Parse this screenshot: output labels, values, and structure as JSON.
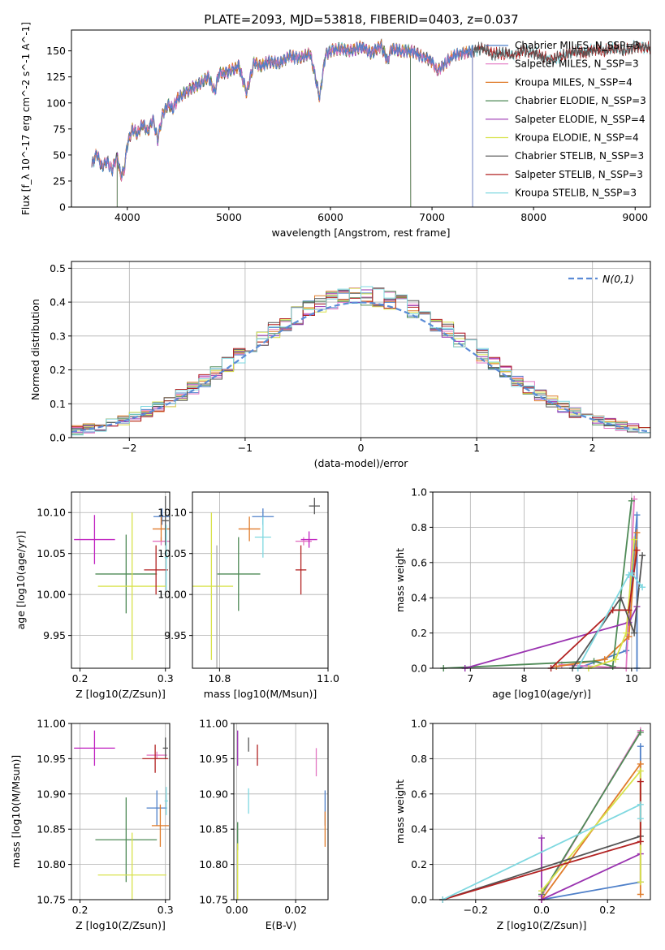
{
  "figure_title": "PLATE=2093, MJD=53818, FIBERID=0403, z=0.037",
  "chart_data": [
    {
      "id": "spectrum",
      "type": "line",
      "title": "PLATE=2093, MJD=53818, FIBERID=0403, z=0.037",
      "xlabel": "wavelength [Angstrom, rest frame]",
      "ylabel": "Flux [f_λ 10^-17 erg cm^-2 s^-1 A^-1]",
      "xlim": [
        3450,
        9150
      ],
      "ylim": [
        0,
        170
      ],
      "xticks": [
        4000,
        5000,
        6000,
        7000,
        8000,
        9000
      ],
      "yticks": [
        0,
        25,
        50,
        75,
        100,
        125,
        150
      ],
      "grid": false,
      "legend_position": "right",
      "spectrum_x": [
        3650,
        3700,
        3750,
        3800,
        3850,
        3900,
        3933,
        3968,
        4000,
        4050,
        4100,
        4150,
        4200,
        4250,
        4300,
        4350,
        4400,
        4450,
        4500,
        4600,
        4700,
        4800,
        4861,
        4900,
        5000,
        5100,
        5175,
        5250,
        5300,
        5400,
        5500,
        5600,
        5700,
        5800,
        5893,
        5950,
        6000,
        6100,
        6200,
        6300,
        6400,
        6500,
        6563,
        6600,
        6700,
        6800,
        6900,
        7000,
        7050,
        7100,
        7200,
        7300,
        7400,
        7500,
        7600,
        7700,
        7800,
        7900,
        8000,
        8100,
        8200,
        8300,
        8400,
        8500,
        8600,
        8700,
        8800,
        8900,
        9000,
        9100
      ],
      "spectrum_y": [
        40,
        52,
        38,
        45,
        35,
        50,
        30,
        35,
        60,
        75,
        70,
        80,
        72,
        85,
        65,
        90,
        98,
        95,
        105,
        112,
        118,
        125,
        110,
        128,
        130,
        135,
        110,
        140,
        135,
        140,
        138,
        145,
        143,
        148,
        105,
        146,
        150,
        152,
        150,
        154,
        148,
        155,
        140,
        152,
        150,
        150,
        145,
        140,
        130,
        135,
        145,
        148,
        150,
        153,
        147,
        148,
        146,
        150,
        148,
        144,
        142,
        146,
        150,
        148,
        152,
        150,
        153,
        150,
        155,
        153
      ],
      "series": [
        {
          "name": "Chabrier MILES, N_SSP=3",
          "color": "#4f80c9",
          "min_wavelength": 3650,
          "max_wavelength": 7400
        },
        {
          "name": "Salpeter MILES, N_SSP=3",
          "color": "#e377c2",
          "min_wavelength": 3650,
          "max_wavelength": 7400
        },
        {
          "name": "Kroupa MILES, N_SSP=4",
          "color": "#e07b2a",
          "min_wavelength": 3650,
          "max_wavelength": 7400
        },
        {
          "name": "Chabrier ELODIE, N_SSP=3",
          "color": "#4e8a56",
          "min_wavelength": 3900,
          "max_wavelength": 6790
        },
        {
          "name": "Salpeter ELODIE, N_SSP=4",
          "color": "#9a33b0",
          "min_wavelength": 3900,
          "max_wavelength": 6790
        },
        {
          "name": "Kroupa ELODIE, N_SSP=4",
          "color": "#d8e24a",
          "min_wavelength": 3900,
          "max_wavelength": 6790
        },
        {
          "name": "Chabrier STELIB, N_SSP=3",
          "color": "#555555",
          "min_wavelength": 3650,
          "max_wavelength": 9150
        },
        {
          "name": "Salpeter STELIB, N_SSP=3",
          "color": "#b22222",
          "min_wavelength": 3650,
          "max_wavelength": 9150
        },
        {
          "name": "Kroupa STELIB, N_SSP=3",
          "color": "#7fd8e0",
          "min_wavelength": 3650,
          "max_wavelength": 9150
        }
      ]
    },
    {
      "id": "residuals",
      "type": "bar",
      "xlabel": "(data-model)/error",
      "ylabel": "Normed distribution",
      "xlim": [
        -2.5,
        2.5
      ],
      "ylim": [
        0,
        0.52
      ],
      "xticks": [
        -2,
        -1,
        0,
        1,
        2
      ],
      "yticks": [
        0.0,
        0.1,
        0.2,
        0.3,
        0.4,
        0.5
      ],
      "grid": true,
      "legend_position": "top-right",
      "legend": "N(0,1)",
      "reference_curve": "normal(0,1)",
      "bin_width": 0.1
    },
    {
      "id": "age_vs_Z",
      "type": "scatter",
      "xlabel": "Z [log10(Z/Zsun)]",
      "ylabel": "age [log10(age/yr)]",
      "xlim": [
        0.19,
        0.305
      ],
      "ylim": [
        9.91,
        10.125
      ],
      "xticks": [
        0.2,
        0.3
      ],
      "yticks": [
        9.95,
        10.0,
        10.05,
        10.1
      ],
      "grid": true,
      "points": [
        {
          "x": 0.296,
          "xerr": 0.01,
          "y": 10.095,
          "yerr": 0.01,
          "color": "#4f80c9"
        },
        {
          "x": 0.295,
          "xerr": 0.01,
          "y": 10.065,
          "yerr": 0.005,
          "color": "#e377c2"
        },
        {
          "x": 0.295,
          "xerr": 0.01,
          "y": 10.08,
          "yerr": 0.015,
          "color": "#e07b2a"
        },
        {
          "x": 0.254,
          "xerr": 0.036,
          "y": 10.025,
          "yerr": 0.048,
          "color": "#4e8a56"
        },
        {
          "x": 0.217,
          "xerr": 0.024,
          "y": 10.067,
          "yerr": 0.03,
          "color": "#c020c0"
        },
        {
          "x": 0.261,
          "xerr": 0.04,
          "y": 10.01,
          "yerr": 0.09,
          "color": "#d8e24a"
        },
        {
          "x": 0.3,
          "xerr": 0.004,
          "y": 10.09,
          "yerr": 0.03,
          "color": "#555555"
        },
        {
          "x": 0.289,
          "xerr": 0.014,
          "y": 10.03,
          "yerr": 0.03,
          "color": "#b22222"
        },
        {
          "x": 0.301,
          "xerr": 0.002,
          "y": 10.045,
          "yerr": 0.04,
          "color": "#7fd8e0"
        }
      ]
    },
    {
      "id": "age_vs_mass",
      "type": "scatter",
      "xlabel": "mass [log10(M/Msun)]",
      "ylabel": "",
      "xlim": [
        10.75,
        11.0
      ],
      "ylim": [
        9.91,
        10.125
      ],
      "xticks": [
        10.8,
        11.0
      ],
      "yticks": [
        9.95,
        10.0,
        10.05,
        10.1
      ],
      "grid": true,
      "points": [
        {
          "x": 10.88,
          "xerr": 0.02,
          "y": 10.095,
          "yerr": 0.01,
          "color": "#4f80c9"
        },
        {
          "x": 10.955,
          "xerr": 0.015,
          "y": 10.065,
          "yerr": 0.005,
          "color": "#e377c2"
        },
        {
          "x": 10.855,
          "xerr": 0.02,
          "y": 10.08,
          "yerr": 0.015,
          "color": "#e07b2a"
        },
        {
          "x": 10.835,
          "xerr": 0.04,
          "y": 10.025,
          "yerr": 0.045,
          "color": "#4e8a56"
        },
        {
          "x": 10.965,
          "xerr": 0.015,
          "y": 10.067,
          "yerr": 0.01,
          "color": "#c020c0"
        },
        {
          "x": 10.785,
          "xerr": 0.04,
          "y": 10.01,
          "yerr": 0.09,
          "color": "#d8e24a"
        },
        {
          "x": 10.975,
          "xerr": 0.01,
          "y": 10.108,
          "yerr": 0.01,
          "color": "#555555"
        },
        {
          "x": 10.95,
          "xerr": 0.01,
          "y": 10.03,
          "yerr": 0.03,
          "color": "#b22222"
        },
        {
          "x": 10.88,
          "xerr": 0.015,
          "y": 10.07,
          "yerr": 0.025,
          "color": "#7fd8e0"
        },
        {
          "x": 10.795,
          "xerr": 0.0,
          "y": 9.985,
          "yerr": 0.075,
          "color": "#aaaaaa"
        }
      ]
    },
    {
      "id": "weight_vs_age",
      "type": "line",
      "xlabel": "age [log10(age/yr)]",
      "ylabel": "mass weight",
      "xlim": [
        6.3,
        10.35
      ],
      "ylim": [
        0,
        1.0
      ],
      "xticks": [
        7,
        8,
        9,
        10
      ],
      "yticks": [
        0.0,
        0.2,
        0.4,
        0.6,
        0.8,
        1.0
      ],
      "grid": true,
      "series": [
        {
          "color": "#4f80c9",
          "x": [
            9.0,
            9.9,
            10.1,
            10.1
          ],
          "y": [
            0.0,
            0.1,
            0.87,
            0.0
          ]
        },
        {
          "color": "#e377c2",
          "x": [
            8.7,
            9.9,
            10.05
          ],
          "y": [
            0.02,
            0.0,
            0.96
          ]
        },
        {
          "color": "#e07b2a",
          "x": [
            8.6,
            9.5,
            9.95,
            10.1
          ],
          "y": [
            0.01,
            0.05,
            0.18,
            0.77
          ]
        },
        {
          "color": "#4e8a56",
          "x": [
            6.5,
            9.3,
            9.65,
            10.0
          ],
          "y": [
            0.0,
            0.04,
            0.01,
            0.95
          ]
        },
        {
          "color": "#9a33b0",
          "x": [
            6.9,
            9.95,
            10.1
          ],
          "y": [
            0.0,
            0.26,
            0.35
          ]
        },
        {
          "color": "#d8e24a",
          "x": [
            9.2,
            9.7,
            9.9,
            10.05
          ],
          "y": [
            0.0,
            0.05,
            0.2,
            0.73
          ]
        },
        {
          "color": "#555555",
          "x": [
            8.9,
            9.8,
            10.05,
            10.2
          ],
          "y": [
            0.0,
            0.4,
            0.2,
            0.64
          ]
        },
        {
          "color": "#b22222",
          "x": [
            8.5,
            9.65,
            9.95,
            10.1
          ],
          "y": [
            0.0,
            0.33,
            0.33,
            0.67
          ]
        },
        {
          "color": "#7fd8e0",
          "x": [
            9.0,
            9.95,
            10.0,
            10.2
          ],
          "y": [
            0.0,
            0.53,
            0.54,
            0.46
          ]
        }
      ]
    },
    {
      "id": "mass_vs_Z",
      "type": "scatter",
      "xlabel": "Z [log10(Z/Zsun)]",
      "ylabel": "mass [log10(M/Msun)]",
      "xlim": [
        0.19,
        0.305
      ],
      "ylim": [
        10.75,
        11.0
      ],
      "xticks": [
        0.2,
        0.3
      ],
      "yticks": [
        10.75,
        10.8,
        10.85,
        10.9,
        10.95,
        11.0
      ],
      "grid": true,
      "points": [
        {
          "x": 0.29,
          "xerr": 0.012,
          "y": 10.88,
          "yerr": 0.025,
          "color": "#4f80c9"
        },
        {
          "x": 0.29,
          "xerr": 0.012,
          "y": 10.955,
          "yerr": 0.005,
          "color": "#e377c2"
        },
        {
          "x": 0.294,
          "xerr": 0.01,
          "y": 10.855,
          "yerr": 0.03,
          "color": "#e07b2a"
        },
        {
          "x": 0.254,
          "xerr": 0.036,
          "y": 10.835,
          "yerr": 0.06,
          "color": "#4e8a56"
        },
        {
          "x": 0.217,
          "xerr": 0.024,
          "y": 10.965,
          "yerr": 0.025,
          "color": "#c020c0"
        },
        {
          "x": 0.261,
          "xerr": 0.04,
          "y": 10.785,
          "yerr": 0.06,
          "color": "#d8e24a"
        },
        {
          "x": 0.3,
          "xerr": 0.003,
          "y": 10.965,
          "yerr": 0.015,
          "color": "#555555"
        },
        {
          "x": 0.288,
          "xerr": 0.015,
          "y": 10.95,
          "yerr": 0.02,
          "color": "#b22222"
        },
        {
          "x": 0.301,
          "xerr": 0.002,
          "y": 10.89,
          "yerr": 0.02,
          "color": "#7fd8e0"
        }
      ]
    },
    {
      "id": "mass_vs_ebv",
      "type": "scatter",
      "xlabel": "E(B-V)",
      "ylabel": "",
      "xlim": [
        -0.001,
        0.031
      ],
      "ylim": [
        10.75,
        11.0
      ],
      "xticks": [
        0.0,
        0.02
      ],
      "yticks": [
        10.75,
        10.8,
        10.85,
        10.9,
        10.95,
        11.0
      ],
      "grid": true,
      "points": [
        {
          "x": 0.03,
          "xerr": 0.0,
          "y": 10.88,
          "yerr": 0.025,
          "color": "#4f80c9"
        },
        {
          "x": 0.027,
          "xerr": 0.0,
          "y": 10.945,
          "yerr": 0.02,
          "color": "#e377c2"
        },
        {
          "x": 0.03,
          "xerr": 0.0,
          "y": 10.85,
          "yerr": 0.025,
          "color": "#e07b2a"
        },
        {
          "x": 0.0003,
          "xerr": 0.0,
          "y": 10.84,
          "yerr": 0.02,
          "color": "#4e8a56"
        },
        {
          "x": 0.0003,
          "xerr": 0.0,
          "y": 10.965,
          "yerr": 0.025,
          "color": "#9a33b0"
        },
        {
          "x": 0.0003,
          "xerr": 0.0,
          "y": 10.78,
          "yerr": 0.05,
          "color": "#d8e24a"
        },
        {
          "x": 0.004,
          "xerr": 0.0,
          "y": 10.97,
          "yerr": 0.01,
          "color": "#555555"
        },
        {
          "x": 0.007,
          "xerr": 0.0,
          "y": 10.955,
          "yerr": 0.015,
          "color": "#b22222"
        },
        {
          "x": 0.004,
          "xerr": 0.0,
          "y": 10.89,
          "yerr": 0.018,
          "color": "#7fd8e0"
        }
      ]
    },
    {
      "id": "weight_vs_Z",
      "type": "line",
      "xlabel": "Z [log10(Z/Zsun)]",
      "ylabel": "mass weight",
      "xlim": [
        -0.33,
        0.33
      ],
      "ylim": [
        0,
        1.0
      ],
      "xticks": [
        -0.2,
        0.0,
        0.2
      ],
      "yticks": [
        0.0,
        0.2,
        0.4,
        0.6,
        0.8,
        1.0
      ],
      "grid": true,
      "series": [
        {
          "color": "#4f80c9",
          "x": [
            0.0,
            0.3,
            0.3
          ],
          "y": [
            0.0,
            0.1,
            0.87
          ]
        },
        {
          "color": "#e377c2",
          "x": [
            0.0,
            0.3
          ],
          "y": [
            0.02,
            0.96
          ]
        },
        {
          "color": "#e07b2a",
          "x": [
            0.0,
            0.3,
            0.3
          ],
          "y": [
            0.0,
            0.77,
            0.03
          ]
        },
        {
          "color": "#4e8a56",
          "x": [
            0.0,
            0.3
          ],
          "y": [
            0.03,
            0.95
          ]
        },
        {
          "color": "#9a33b0",
          "x": [
            0.0,
            0.0,
            0.3
          ],
          "y": [
            0.35,
            0.0,
            0.26
          ]
        },
        {
          "color": "#d8e24a",
          "x": [
            0.0,
            0.3,
            0.3
          ],
          "y": [
            0.05,
            0.73,
            0.1
          ]
        },
        {
          "color": "#555555",
          "x": [
            -0.3,
            0.3
          ],
          "y": [
            0.0,
            0.36
          ]
        },
        {
          "color": "#b22222",
          "x": [
            -0.3,
            0.3,
            0.3
          ],
          "y": [
            0.0,
            0.33,
            0.67
          ]
        },
        {
          "color": "#7fd8e0",
          "x": [
            -0.3,
            0.3,
            0.3
          ],
          "y": [
            0.0,
            0.54,
            0.46
          ]
        }
      ]
    }
  ]
}
